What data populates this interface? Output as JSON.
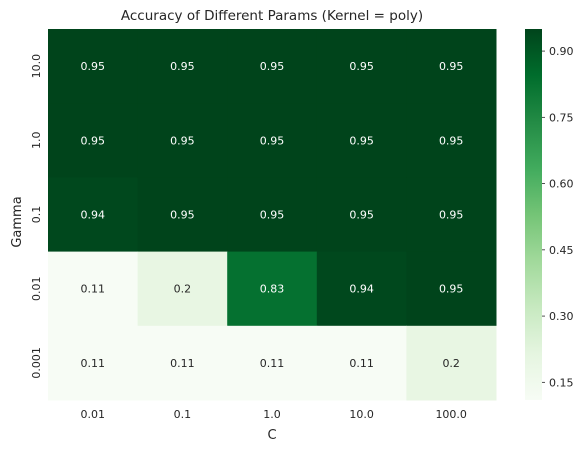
{
  "chart_data": {
    "type": "heatmap",
    "title": "Accuracy of Different Params (Kernel = poly)",
    "xlabel": "C",
    "ylabel": "Gamma",
    "x_categories": [
      "0.01",
      "0.1",
      "1.0",
      "10.0",
      "100.0"
    ],
    "y_categories": [
      "10.0",
      "1.0",
      "0.1",
      "0.01",
      "0.001"
    ],
    "values": [
      [
        0.95,
        0.95,
        0.95,
        0.95,
        0.95
      ],
      [
        0.95,
        0.95,
        0.95,
        0.95,
        0.95
      ],
      [
        0.94,
        0.95,
        0.95,
        0.95,
        0.95
      ],
      [
        0.11,
        0.2,
        0.83,
        0.94,
        0.95
      ],
      [
        0.11,
        0.11,
        0.11,
        0.11,
        0.2
      ]
    ],
    "value_labels": [
      [
        "0.95",
        "0.95",
        "0.95",
        "0.95",
        "0.95"
      ],
      [
        "0.95",
        "0.95",
        "0.95",
        "0.95",
        "0.95"
      ],
      [
        "0.94",
        "0.95",
        "0.95",
        "0.95",
        "0.95"
      ],
      [
        "0.11",
        "0.2",
        "0.83",
        "0.94",
        "0.95"
      ],
      [
        "0.11",
        "0.11",
        "0.11",
        "0.11",
        "0.2"
      ]
    ],
    "colorbar": {
      "range": [
        0.11,
        0.95
      ],
      "ticks": [
        0.15,
        0.3,
        0.45,
        0.6,
        0.75,
        0.9
      ],
      "tick_labels": [
        "0.15",
        "0.30",
        "0.45",
        "0.60",
        "0.75",
        "0.90"
      ],
      "colormap": "Greens"
    }
  }
}
